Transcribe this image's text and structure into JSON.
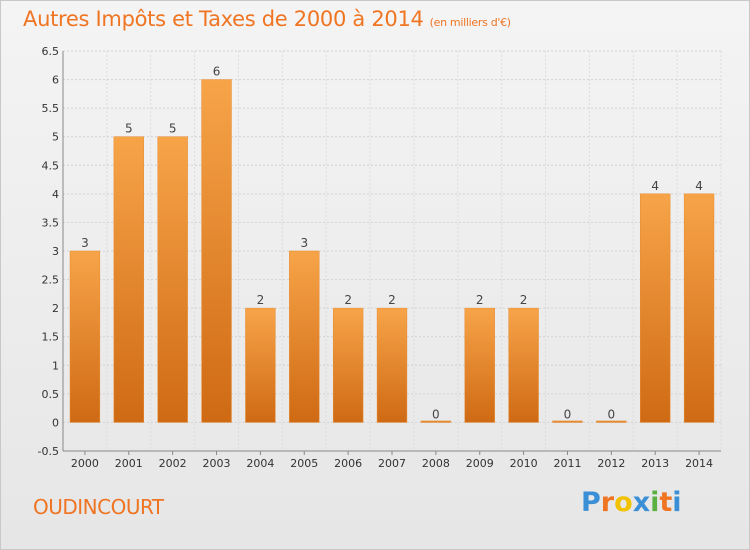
{
  "chart_data": {
    "type": "bar",
    "title": "Autres Impôts et Taxes de 2000 à 2014",
    "title_unit": "(en milliers d'€)",
    "categories": [
      "2000",
      "2001",
      "2002",
      "2003",
      "2004",
      "2005",
      "2006",
      "2007",
      "2008",
      "2009",
      "2010",
      "2011",
      "2012",
      "2013",
      "2014"
    ],
    "values": [
      3,
      5,
      5,
      6,
      2,
      3,
      2,
      2,
      0,
      2,
      2,
      0,
      0,
      4,
      4
    ],
    "data_labels": [
      "3",
      "5",
      "5",
      "6",
      "2",
      "3",
      "2",
      "2",
      "0",
      "2",
      "2",
      "0",
      "0",
      "4",
      "4"
    ],
    "ylim": [
      -0.5,
      6.5
    ],
    "yticks": [
      "-0.5",
      "0",
      "0.5",
      "1",
      "1.5",
      "2",
      "2.5",
      "3",
      "3.5",
      "4",
      "4.5",
      "5",
      "5.5",
      "6",
      "6.5"
    ],
    "ytick_values": [
      -0.5,
      0,
      0.5,
      1,
      1.5,
      2,
      2.5,
      3,
      3.5,
      4,
      4.5,
      5,
      5.5,
      6,
      6.5
    ],
    "grid": true,
    "bar_color": "#f0922f",
    "bar_color_dark": "#cf6a14",
    "xlabel": "",
    "ylabel": ""
  },
  "footer": {
    "commune": "OUDINCOURT",
    "logo_letters": [
      "P",
      "r",
      "o",
      "x",
      "i",
      "t",
      "i"
    ],
    "logo_colors": [
      "#3a8fd6",
      "#ef7523",
      "#f2c200",
      "#3a8fd6",
      "#5bb043",
      "#ef7523",
      "#3a8fd6"
    ]
  }
}
